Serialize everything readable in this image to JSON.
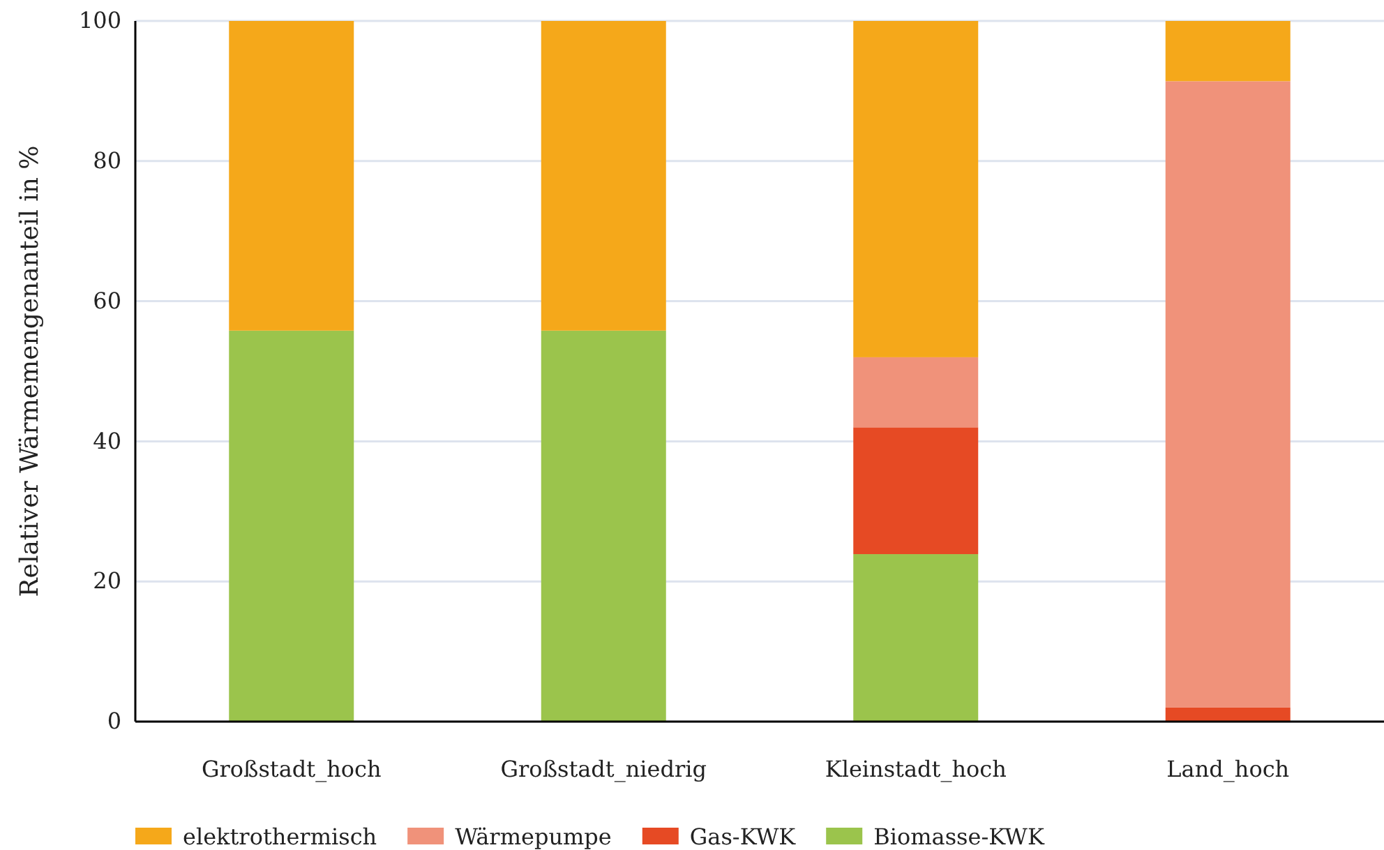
{
  "chart_data": {
    "type": "bar",
    "stacked": true,
    "ylabel": "Relativer Wärmemengenanteil in %",
    "categories": [
      "Großstadt_hoch",
      "Großstadt_niedrig",
      "Kleinstadt_hoch",
      "Land_hoch"
    ],
    "series": [
      {
        "name": "Biomasse-KWK",
        "color": "#9bc44c",
        "values": [
          55.8,
          55.8,
          23.9,
          0
        ]
      },
      {
        "name": "Gas-KWK",
        "color": "#e64a24",
        "values": [
          0,
          0,
          18.1,
          2.0
        ]
      },
      {
        "name": "Wärmepumpe",
        "color": "#f0927a",
        "values": [
          0,
          0,
          10.0,
          89.4
        ]
      },
      {
        "name": "elektrothermisch",
        "color": "#f5a81a",
        "values": [
          44.2,
          44.2,
          48.0,
          8.6
        ]
      }
    ],
    "ylim": [
      0,
      100
    ],
    "yticks": [
      0,
      20,
      40,
      60,
      80,
      100
    ],
    "grid": "y",
    "legend": "bottom"
  }
}
